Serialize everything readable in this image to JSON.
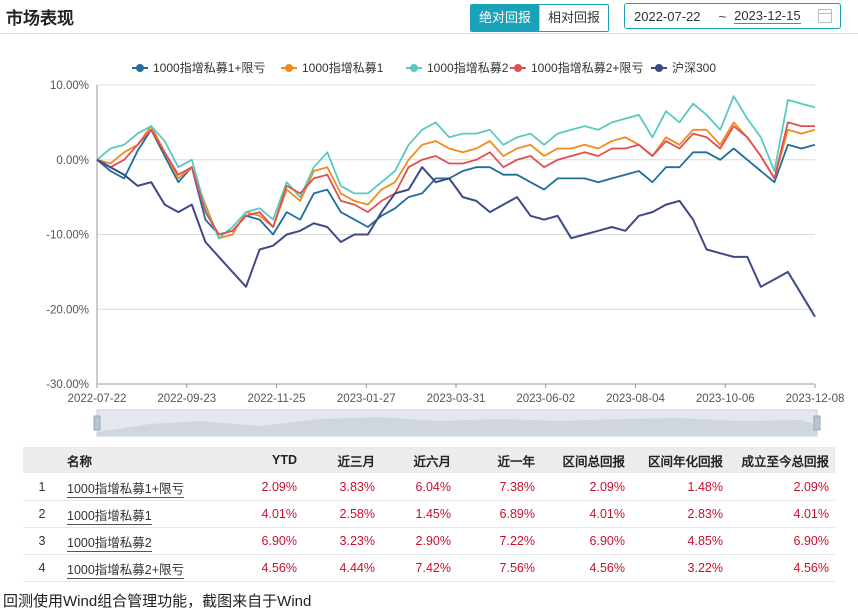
{
  "header": {
    "title": "市场表现",
    "toggle_absolute": "绝对回报",
    "toggle_relative": "相对回报",
    "date_start": "2022-07-22",
    "date_sep": "~",
    "date_end": "2023-12-15"
  },
  "chart_data": {
    "type": "line",
    "y_ticks": [
      "10.00%",
      "0.00%",
      "-10.00%",
      "-20.00%",
      "-30.00%"
    ],
    "x_ticks": [
      "2022-07-22",
      "2022-09-23",
      "2022-11-25",
      "2023-01-27",
      "2023-03-31",
      "2023-06-02",
      "2023-08-04",
      "2023-10-06",
      "2023-12-08"
    ],
    "ylim": [
      -30,
      10
    ],
    "grid": true,
    "legend_position": "top-center",
    "series": [
      {
        "name": "1000指增私募1+限亏",
        "color": "#1f6e9c",
        "values": [
          0,
          -1.5,
          -2.5,
          1.2,
          4,
          0.5,
          -3,
          -1,
          -8,
          -10,
          -9.5,
          -7.5,
          -8,
          -10,
          -7,
          -8,
          -4.5,
          -4,
          -7,
          -8,
          -9,
          -7.5,
          -6.5,
          -5,
          -4.5,
          -2.5,
          -2.5,
          -1.5,
          -1,
          -1,
          -2,
          -2,
          -3,
          -4,
          -2.5,
          -2.5,
          -2.5,
          -3,
          -2.5,
          -2,
          -1.5,
          -3,
          -1,
          -1,
          1,
          1,
          0,
          1.5,
          0,
          -1.5,
          -3,
          2,
          1.5,
          2
        ]
      },
      {
        "name": "1000指增私募1",
        "color": "#f08c1c",
        "values": [
          0,
          -0.5,
          1,
          2,
          4.5,
          1,
          -2.5,
          -1,
          -6,
          -10.5,
          -10,
          -7,
          -7.5,
          -9,
          -4,
          -5.5,
          -1.5,
          -1,
          -4.5,
          -5.5,
          -6,
          -4,
          -3,
          0,
          2,
          2.5,
          1.5,
          1,
          1.5,
          2.5,
          0.5,
          1.5,
          2,
          0.5,
          1.5,
          1.5,
          2,
          1.5,
          2.5,
          3,
          2,
          0.5,
          3,
          2,
          4,
          4,
          2,
          5,
          3,
          0.5,
          -2.5,
          4,
          3.5,
          4
        ]
      },
      {
        "name": "1000指增私募2",
        "color": "#5cc8c0",
        "values": [
          0,
          1.5,
          2,
          3.5,
          4.5,
          2.5,
          -1,
          0,
          -6.5,
          -10.5,
          -9,
          -7,
          -6.5,
          -8,
          -3,
          -5,
          -1,
          1,
          -3.5,
          -4.5,
          -4.5,
          -3,
          -1.5,
          2,
          4,
          5,
          3,
          3.5,
          3.5,
          4,
          2,
          3,
          3.5,
          2,
          3.5,
          4,
          4.5,
          4,
          5,
          5.5,
          6,
          3,
          6.5,
          5,
          7.5,
          6,
          4,
          8.5,
          5.5,
          3,
          -1.5,
          8,
          7.5,
          7
        ]
      },
      {
        "name": "1000指增私募2+限亏",
        "color": "#e04f54",
        "values": [
          0,
          -1,
          0,
          2,
          4,
          1,
          -2,
          -1,
          -7,
          -10,
          -9.5,
          -7.5,
          -7,
          -9,
          -3.5,
          -4.5,
          -2.5,
          -2,
          -5.5,
          -6,
          -7,
          -5.5,
          -4.5,
          -1,
          0,
          0.5,
          -0.5,
          -0.5,
          0,
          1,
          -1,
          0,
          0.5,
          -1,
          0,
          0.5,
          1,
          0.5,
          1.5,
          1.5,
          2,
          0.5,
          2.5,
          1.5,
          3.5,
          3,
          1.5,
          4.5,
          3,
          0.5,
          -2.5,
          5,
          4.5,
          4.5
        ]
      },
      {
        "name": "沪深300",
        "color": "#3e4a86",
        "values": [
          0,
          -1,
          -2,
          -3.5,
          -3,
          -6,
          -7,
          -6,
          -11,
          -13,
          -15,
          -17,
          -12,
          -11.5,
          -10,
          -9.5,
          -8.5,
          -9,
          -11,
          -10,
          -10,
          -7,
          -4.5,
          -4,
          -1,
          -3,
          -2.5,
          -5,
          -5.5,
          -7,
          -6,
          -5,
          -7.5,
          -8,
          -7.5,
          -10.5,
          -10,
          -9.5,
          -9,
          -9.5,
          -7.5,
          -7,
          -6,
          -5.5,
          -8,
          -12,
          -12.5,
          -13,
          -13,
          -17,
          -16,
          -15,
          -18,
          -21
        ]
      }
    ]
  },
  "table": {
    "headers": [
      "名称",
      "YTD",
      "近三月",
      "近六月",
      "近一年",
      "区间总回报",
      "区间年化回报",
      "成立至今总回报"
    ],
    "rows": [
      {
        "index": "1",
        "name": "1000指增私募1+限亏",
        "cells": [
          "2.09%",
          "3.83%",
          "6.04%",
          "7.38%",
          "2.09%",
          "1.48%",
          "2.09%"
        ]
      },
      {
        "index": "2",
        "name": "1000指增私募1",
        "cells": [
          "4.01%",
          "2.58%",
          "1.45%",
          "6.89%",
          "4.01%",
          "2.83%",
          "4.01%"
        ]
      },
      {
        "index": "3",
        "name": "1000指增私募2",
        "cells": [
          "6.90%",
          "3.23%",
          "2.90%",
          "7.22%",
          "6.90%",
          "4.85%",
          "6.90%"
        ]
      },
      {
        "index": "4",
        "name": "1000指增私募2+限亏",
        "cells": [
          "4.56%",
          "4.44%",
          "7.42%",
          "7.56%",
          "4.56%",
          "3.22%",
          "4.56%"
        ]
      }
    ]
  },
  "footer": "回测使用Wind组合管理功能，截图来自于Wind"
}
